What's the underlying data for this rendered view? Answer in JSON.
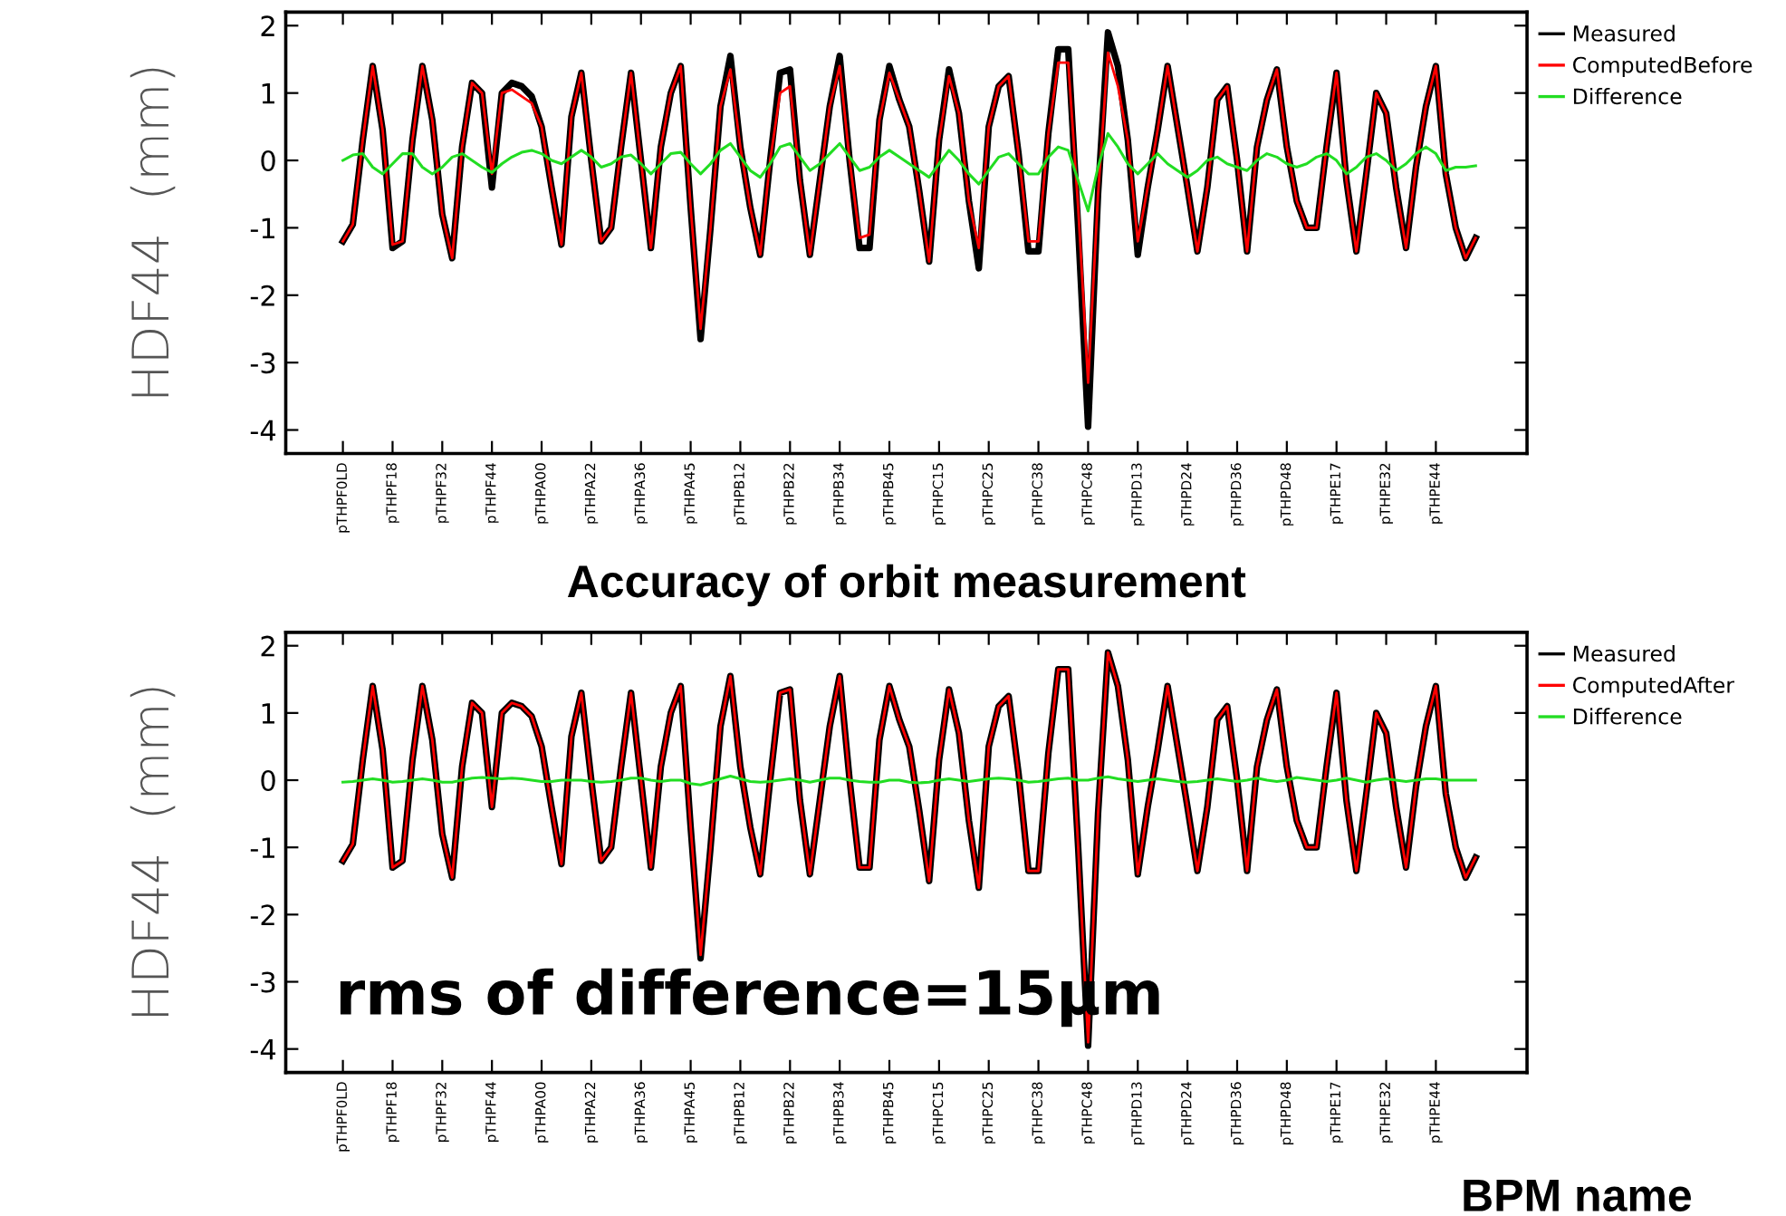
{
  "chart_data": [
    {
      "type": "line",
      "ylabel": "HDF44  (mm)",
      "legend": "right",
      "grid": false,
      "ylim": [
        -4.35,
        2.2
      ],
      "yticks": [
        2,
        1,
        0,
        -1,
        -2,
        -3,
        -4
      ],
      "categories": [
        "pTHPF0LD",
        null,
        null,
        null,
        null,
        "pTHPF18",
        null,
        null,
        null,
        null,
        "pTHPF32",
        null,
        null,
        null,
        null,
        "pTHPF44",
        null,
        null,
        null,
        null,
        "pTHPA00",
        null,
        null,
        null,
        null,
        "pTHPA22",
        null,
        null,
        null,
        null,
        "pTHPA36",
        null,
        null,
        null,
        null,
        "pTHPA45",
        null,
        null,
        null,
        null,
        "pTHPB12",
        null,
        null,
        null,
        null,
        "pTHPB22",
        null,
        null,
        null,
        null,
        "pTHPB34",
        null,
        null,
        null,
        null,
        "pTHPB45",
        null,
        null,
        null,
        null,
        "pTHPC15",
        null,
        null,
        null,
        null,
        "pTHPC25",
        null,
        null,
        null,
        null,
        "pTHPC38",
        null,
        null,
        null,
        null,
        "pTHPC48",
        null,
        null,
        null,
        null,
        "pTHPD13",
        null,
        null,
        null,
        null,
        "pTHPD24",
        null,
        null,
        null,
        null,
        "pTHPD36",
        null,
        null,
        null,
        null,
        "pTHPD48",
        null,
        null,
        null,
        null,
        "pTHPE17",
        null,
        null,
        null,
        null,
        "pTHPE32",
        null,
        null,
        null,
        null,
        "pTHPE44",
        null,
        null,
        null,
        null
      ],
      "series": [
        {
          "name": "Measured",
          "color": "#000000",
          "values": [
            -1.2,
            -0.95,
            0.3,
            1.4,
            0.45,
            -1.3,
            -1.2,
            0.3,
            1.4,
            0.6,
            -0.8,
            -1.45,
            0.2,
            1.15,
            1.0,
            -0.4,
            1.0,
            1.15,
            1.1,
            0.95,
            0.5,
            -0.4,
            -1.25,
            0.65,
            1.3,
            0.0,
            -1.2,
            -1.0,
            0.2,
            1.3,
            0.0,
            -1.3,
            0.2,
            1.0,
            1.4,
            -0.7,
            -2.65,
            -1.0,
            0.8,
            1.55,
            0.2,
            -0.7,
            -1.4,
            0.0,
            1.3,
            1.35,
            -0.3,
            -1.4,
            -0.3,
            0.8,
            1.55,
            0.0,
            -1.3,
            -1.3,
            0.6,
            1.4,
            0.9,
            0.5,
            -0.45,
            -1.5,
            0.3,
            1.35,
            0.7,
            -0.6,
            -1.6,
            0.5,
            1.1,
            1.25,
            0.1,
            -1.35,
            -1.35,
            0.4,
            1.65,
            1.65,
            -1.0,
            -3.95,
            -0.5,
            1.9,
            1.4,
            0.3,
            -1.4,
            -0.4,
            0.45,
            1.4,
            0.5,
            -0.4,
            -1.35,
            -0.4,
            0.9,
            1.1,
            0.0,
            -1.35,
            0.2,
            0.9,
            1.35,
            0.2,
            -0.6,
            -1.0,
            -1.0,
            0.2,
            1.3,
            -0.3,
            -1.35,
            -0.2,
            1.0,
            0.7,
            -0.4,
            -1.3,
            -0.1,
            0.8,
            1.4,
            -0.2,
            -1.0,
            -1.45,
            -1.15
          ]
        },
        {
          "name": "ComputedBefore",
          "color": "#ff0000",
          "values": [
            -1.2,
            -0.95,
            0.3,
            1.4,
            0.45,
            -1.25,
            -1.2,
            0.3,
            1.4,
            0.6,
            -0.8,
            -1.45,
            0.2,
            1.15,
            1.0,
            -0.2,
            1.0,
            1.05,
            0.95,
            0.85,
            0.5,
            -0.4,
            -1.25,
            0.65,
            1.3,
            0.0,
            -1.2,
            -1.0,
            0.2,
            1.3,
            0.0,
            -1.3,
            0.2,
            1.0,
            1.4,
            -0.7,
            -2.5,
            -1.0,
            0.8,
            1.35,
            0.2,
            -0.7,
            -1.4,
            0.0,
            1.0,
            1.1,
            -0.3,
            -1.4,
            -0.3,
            0.8,
            1.4,
            0.0,
            -1.15,
            -1.1,
            0.6,
            1.3,
            0.9,
            0.5,
            -0.45,
            -1.5,
            0.3,
            1.25,
            0.7,
            -0.6,
            -1.3,
            0.5,
            1.1,
            1.25,
            0.1,
            -1.2,
            -1.2,
            0.4,
            1.45,
            1.45,
            -0.7,
            -3.3,
            -0.5,
            1.6,
            1.1,
            0.3,
            -1.2,
            -0.4,
            0.45,
            1.4,
            0.5,
            -0.4,
            -1.35,
            -0.4,
            0.9,
            1.1,
            0.0,
            -1.35,
            0.2,
            0.9,
            1.35,
            0.2,
            -0.6,
            -1.0,
            -1.0,
            0.2,
            1.3,
            -0.3,
            -1.35,
            -0.2,
            1.0,
            0.7,
            -0.4,
            -1.3,
            -0.1,
            0.8,
            1.4,
            -0.2,
            -1.0,
            -1.45,
            -1.15
          ]
        },
        {
          "name": "Difference",
          "color": "#22dd22",
          "values": [
            0,
            0.08,
            0.1,
            -0.1,
            -0.2,
            -0.05,
            0.1,
            0.1,
            -0.1,
            -0.2,
            -0.1,
            0.05,
            0.1,
            0,
            -0.1,
            -0.18,
            -0.05,
            0.05,
            0.12,
            0.15,
            0.1,
            0,
            -0.05,
            0.05,
            0.15,
            0.05,
            -0.1,
            -0.05,
            0.05,
            0.08,
            -0.05,
            -0.2,
            -0.05,
            0.1,
            0.12,
            -0.05,
            -0.2,
            -0.05,
            0.15,
            0.25,
            0.05,
            -0.15,
            -0.25,
            -0.05,
            0.2,
            0.25,
            0.05,
            -0.15,
            -0.05,
            0.1,
            0.25,
            0.05,
            -0.15,
            -0.1,
            0.05,
            0.15,
            0.05,
            -0.05,
            -0.15,
            -0.25,
            -0.05,
            0.15,
            0,
            -0.2,
            -0.35,
            -0.15,
            0.05,
            0.1,
            -0.05,
            -0.2,
            -0.2,
            0.05,
            0.2,
            0.15,
            -0.3,
            -0.75,
            -0.1,
            0.4,
            0.2,
            -0.05,
            -0.2,
            -0.05,
            0.1,
            -0.05,
            -0.15,
            -0.25,
            -0.15,
            0,
            0.05,
            -0.05,
            -0.1,
            -0.15,
            0,
            0.1,
            0.05,
            -0.05,
            -0.1,
            -0.05,
            0.05,
            0.1,
            0,
            -0.2,
            -0.1,
            0.05,
            0.1,
            0,
            -0.15,
            -0.05,
            0.1,
            0.2,
            0.1,
            -0.15,
            -0.1,
            -0.1,
            -0.08
          ]
        }
      ]
    },
    {
      "type": "line",
      "title": "Accuracy of orbit measurement",
      "ylabel": "HDF44  (mm)",
      "xlabel": "BPM name",
      "legend": "right",
      "grid": false,
      "ylim": [
        -4.35,
        2.2
      ],
      "yticks": [
        2,
        1,
        0,
        -1,
        -2,
        -3,
        -4
      ],
      "annotations": [
        "rms of difference=15μm"
      ],
      "categories": [
        "pTHPF0LD",
        null,
        null,
        null,
        null,
        "pTHPF18",
        null,
        null,
        null,
        null,
        "pTHPF32",
        null,
        null,
        null,
        null,
        "pTHPF44",
        null,
        null,
        null,
        null,
        "pTHPA00",
        null,
        null,
        null,
        null,
        "pTHPA22",
        null,
        null,
        null,
        null,
        "pTHPA36",
        null,
        null,
        null,
        null,
        "pTHPA45",
        null,
        null,
        null,
        null,
        "pTHPB12",
        null,
        null,
        null,
        null,
        "pTHPB22",
        null,
        null,
        null,
        null,
        "pTHPB34",
        null,
        null,
        null,
        null,
        "pTHPB45",
        null,
        null,
        null,
        null,
        "pTHPC15",
        null,
        null,
        null,
        null,
        "pTHPC25",
        null,
        null,
        null,
        null,
        "pTHPC38",
        null,
        null,
        null,
        null,
        "pTHPC48",
        null,
        null,
        null,
        null,
        "pTHPD13",
        null,
        null,
        null,
        null,
        "pTHPD24",
        null,
        null,
        null,
        null,
        "pTHPD36",
        null,
        null,
        null,
        null,
        "pTHPD48",
        null,
        null,
        null,
        null,
        "pTHPE17",
        null,
        null,
        null,
        null,
        "pTHPE32",
        null,
        null,
        null,
        null,
        "pTHPE44",
        null,
        null,
        null,
        null
      ],
      "series": [
        {
          "name": "Measured",
          "color": "#000000",
          "values": [
            -1.2,
            -0.95,
            0.3,
            1.4,
            0.45,
            -1.3,
            -1.2,
            0.3,
            1.4,
            0.6,
            -0.8,
            -1.45,
            0.2,
            1.15,
            1.0,
            -0.4,
            1.0,
            1.15,
            1.1,
            0.95,
            0.5,
            -0.4,
            -1.25,
            0.65,
            1.3,
            0.0,
            -1.2,
            -1.0,
            0.2,
            1.3,
            0.0,
            -1.3,
            0.2,
            1.0,
            1.4,
            -0.7,
            -2.65,
            -1.0,
            0.8,
            1.55,
            0.2,
            -0.7,
            -1.4,
            0.0,
            1.3,
            1.35,
            -0.3,
            -1.4,
            -0.3,
            0.8,
            1.55,
            0.0,
            -1.3,
            -1.3,
            0.6,
            1.4,
            0.9,
            0.5,
            -0.45,
            -1.5,
            0.3,
            1.35,
            0.7,
            -0.6,
            -1.6,
            0.5,
            1.1,
            1.25,
            0.1,
            -1.35,
            -1.35,
            0.4,
            1.65,
            1.65,
            -1.0,
            -3.95,
            -0.5,
            1.9,
            1.4,
            0.3,
            -1.4,
            -0.4,
            0.45,
            1.4,
            0.5,
            -0.4,
            -1.35,
            -0.4,
            0.9,
            1.1,
            0.0,
            -1.35,
            0.2,
            0.9,
            1.35,
            0.2,
            -0.6,
            -1.0,
            -1.0,
            0.2,
            1.3,
            -0.3,
            -1.35,
            -0.2,
            1.0,
            0.7,
            -0.4,
            -1.3,
            -0.1,
            0.8,
            1.4,
            -0.2,
            -1.0,
            -1.45,
            -1.15
          ]
        },
        {
          "name": "ComputedAfter",
          "color": "#ff0000",
          "values": [
            -1.2,
            -0.95,
            0.3,
            1.4,
            0.45,
            -1.3,
            -1.2,
            0.3,
            1.4,
            0.6,
            -0.8,
            -1.45,
            0.2,
            1.15,
            1.0,
            -0.4,
            1.0,
            1.15,
            1.1,
            0.95,
            0.5,
            -0.4,
            -1.25,
            0.65,
            1.3,
            0.0,
            -1.2,
            -1.0,
            0.2,
            1.3,
            0.0,
            -1.3,
            0.2,
            1.0,
            1.4,
            -0.7,
            -2.6,
            -1.0,
            0.8,
            1.55,
            0.2,
            -0.7,
            -1.4,
            0.0,
            1.3,
            1.35,
            -0.3,
            -1.4,
            -0.3,
            0.8,
            1.55,
            0.0,
            -1.3,
            -1.3,
            0.6,
            1.4,
            0.9,
            0.5,
            -0.45,
            -1.5,
            0.3,
            1.35,
            0.7,
            -0.6,
            -1.6,
            0.5,
            1.1,
            1.25,
            0.1,
            -1.35,
            -1.35,
            0.4,
            1.65,
            1.65,
            -1.0,
            -3.9,
            -0.5,
            1.9,
            1.4,
            0.3,
            -1.4,
            -0.4,
            0.45,
            1.4,
            0.5,
            -0.4,
            -1.35,
            -0.4,
            0.9,
            1.1,
            0.0,
            -1.35,
            0.2,
            0.9,
            1.35,
            0.2,
            -0.6,
            -1.0,
            -1.0,
            0.2,
            1.3,
            -0.3,
            -1.35,
            -0.2,
            1.0,
            0.7,
            -0.4,
            -1.3,
            -0.1,
            0.8,
            1.4,
            -0.2,
            -1.0,
            -1.45,
            -1.15
          ]
        },
        {
          "name": "Difference",
          "color": "#22dd22",
          "values": [
            -0.03,
            -0.02,
            0.0,
            0.02,
            0.0,
            -0.03,
            -0.02,
            0.0,
            0.02,
            0.0,
            -0.03,
            -0.03,
            0.0,
            0.03,
            0.04,
            0.03,
            0.02,
            0.03,
            0.02,
            0.0,
            -0.02,
            -0.02,
            0.0,
            0.0,
            0.0,
            -0.02,
            -0.03,
            -0.02,
            0.0,
            0.03,
            0.03,
            0.0,
            -0.02,
            0.0,
            0.0,
            -0.05,
            -0.07,
            -0.03,
            0.02,
            0.06,
            0.02,
            -0.02,
            -0.03,
            -0.02,
            0.0,
            0.02,
            0.0,
            -0.03,
            0.0,
            0.03,
            0.03,
            0.0,
            -0.02,
            -0.03,
            -0.03,
            0.0,
            0.0,
            -0.03,
            -0.04,
            -0.03,
            0.0,
            0.02,
            0.0,
            -0.02,
            0.0,
            0.02,
            0.03,
            0.02,
            0.0,
            -0.03,
            -0.02,
            0.0,
            0.02,
            0.03,
            0.0,
            0.0,
            0.03,
            0.05,
            0.02,
            0.0,
            -0.02,
            0.0,
            0.02,
            0.0,
            -0.02,
            -0.03,
            -0.02,
            0.0,
            0.02,
            0.0,
            -0.02,
            0.0,
            0.03,
            0.0,
            -0.02,
            0.0,
            0.04,
            0.02,
            0.0,
            -0.02,
            0.0,
            0.03,
            0.0,
            -0.03,
            0.0,
            0.02,
            0.0,
            -0.02,
            0.0,
            0.02,
            0.02,
            0.0,
            0.0,
            0.0,
            0.0
          ]
        }
      ]
    }
  ]
}
